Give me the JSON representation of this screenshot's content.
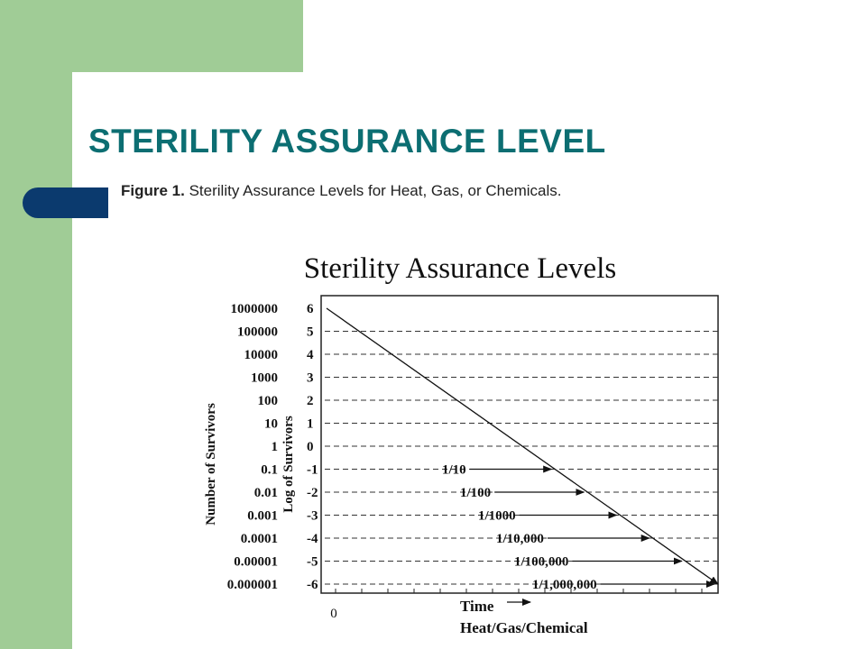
{
  "slide": {
    "title": "STERILITY ASSURANCE LEVEL",
    "caption_bold": "Figure 1.",
    "caption_text": " Sterility Assurance Levels for Heat, Gas, or Chemicals.",
    "colors": {
      "background": "#ffffff",
      "sidebar_green": "#a0cc96",
      "accent_blue": "#0b3a6e",
      "title_teal": "#0c6e72"
    }
  },
  "chart_data": {
    "type": "line",
    "title": "Sterility Assurance Levels",
    "ylabel_outer": "Number of Survivors",
    "ylabel_inner": "Log of Survivors",
    "xlabel": "Time",
    "xlabel2": "Heat/Gas/Chemical",
    "x_origin_label": "0",
    "y_count_labels": [
      "1000000",
      "100000",
      "10000",
      "1000",
      "100",
      "10",
      "1",
      "0.1",
      "0.01",
      "0.001",
      "0.0001",
      "0.00001",
      "0.000001"
    ],
    "y_log_labels": [
      "6",
      "5",
      "4",
      "3",
      "2",
      "1",
      "0",
      "-1",
      "-2",
      "-3",
      "-4",
      "-5",
      "-6"
    ],
    "ylim": [
      -6,
      6
    ],
    "grid": "dashed horizontal lines at each log level",
    "series": [
      {
        "x": [
          0,
          1
        ],
        "y": [
          6,
          -6
        ]
      }
    ],
    "annotations": [
      {
        "text": "1/10",
        "log": -1
      },
      {
        "text": "1/100",
        "log": -2
      },
      {
        "text": "1/1000",
        "log": -3
      },
      {
        "text": "1/10,000",
        "log": -4
      },
      {
        "text": "1/100,000",
        "log": -5
      },
      {
        "text": "1/1,000,000",
        "log": -6
      }
    ]
  }
}
